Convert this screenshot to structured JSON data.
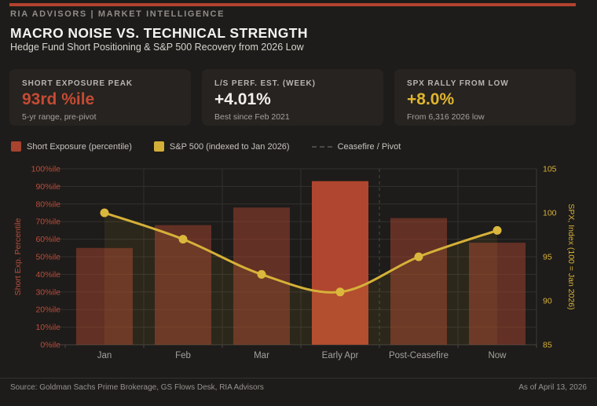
{
  "brand": {
    "eyebrow": "RIA ADVISORS | MARKET INTELLIGENCE",
    "accent_color": "#b2422e"
  },
  "header": {
    "title": "MACRO NOISE VS. TECHNICAL STRENGTH",
    "subtitle": "Hedge Fund Short Positioning & S&P 500 Recovery from 2026 Low"
  },
  "stat_cards": [
    {
      "label": "SHORT EXPOSURE PEAK",
      "value": "93rd %ile",
      "sub": "5-yr range, pre-pivot",
      "value_color": "#c54b33"
    },
    {
      "label": "L/S PERF. EST. (WEEK)",
      "value": "+4.01%",
      "sub": "Best since Feb 2021",
      "value_color": "#f2f0ed"
    },
    {
      "label": "SPX RALLY FROM LOW",
      "value": "+8.0%",
      "sub": "From 6,316 2026 low",
      "value_color": "#e0b52e"
    }
  ],
  "legend": [
    {
      "kind": "swatch",
      "color": "#a8432f",
      "label": "Short Exposure (percentile)"
    },
    {
      "kind": "swatch",
      "color": "#d4af37",
      "label": "S&P 500 (indexed to Jan 2026)"
    },
    {
      "kind": "dash",
      "color": "#4a4a46",
      "label": "Ceasefire / Pivot"
    }
  ],
  "chart_data": {
    "type": "bar",
    "subtype": "bar+line combo, dual axis",
    "categories": [
      "Jan",
      "Feb",
      "Mar",
      "Early Apr",
      "Post-Ceasefire",
      "Now"
    ],
    "series": [
      {
        "name": "Short Exposure (percentile)",
        "type": "bar",
        "axis": "left",
        "values": [
          55,
          68,
          78,
          93,
          72,
          58
        ],
        "highlight_index": 3
      },
      {
        "name": "S&P 500 (indexed to Jan 2026)",
        "type": "line",
        "axis": "right",
        "values": [
          100,
          97,
          93,
          91,
          95,
          98
        ]
      }
    ],
    "left_axis": {
      "title": "Short Exp. Percentile",
      "min": 0,
      "max": 100,
      "step": 10,
      "tick_suffix": "%ile",
      "color": "#b94e3c"
    },
    "right_axis": {
      "title": "SPX, Index (100 = Jan 2026)",
      "min": 85,
      "max": 105,
      "step": 5,
      "color": "#d6b138"
    },
    "annotations": [
      {
        "type": "vline",
        "style": "dashed",
        "label": "Ceasefire / Pivot",
        "between": [
          "Early Apr",
          "Post-Ceasefire"
        ]
      }
    ],
    "grid": true,
    "legend_position": "top",
    "colors": {
      "bar": "rgba(168,67,47,0.5)",
      "bar_highlight": "#b0462f",
      "line": "#d6b138",
      "point": "#dbb83c",
      "area": "rgba(214,177,56,0.08)",
      "gridline": "#32302c",
      "baseline": "#45423d",
      "tick_label_x": "#a3a09c"
    }
  },
  "footer": {
    "source": "Source: Goldman Sachs Prime Brokerage, GS Flows Desk, RIA Advisors",
    "as_of": "As of April 13, 2026"
  }
}
